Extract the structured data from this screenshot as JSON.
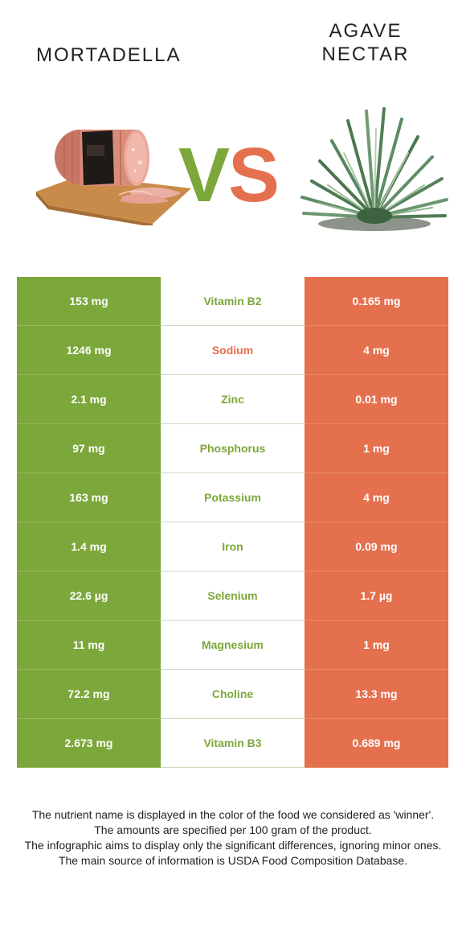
{
  "foods": {
    "left": {
      "name": "MORTADELLA",
      "color": "#7ca73a"
    },
    "right": {
      "name_line1": "AGAVE",
      "name_line2": "NECTAR",
      "color": "#e5704e"
    }
  },
  "vs": {
    "v": "V",
    "s": "S"
  },
  "rows": [
    {
      "left": "153 mg",
      "nutrient": "Vitamin B2",
      "right": "0.165 mg",
      "winner": "left"
    },
    {
      "left": "1246 mg",
      "nutrient": "Sodium",
      "right": "4 mg",
      "winner": "right"
    },
    {
      "left": "2.1 mg",
      "nutrient": "Zinc",
      "right": "0.01 mg",
      "winner": "left"
    },
    {
      "left": "97 mg",
      "nutrient": "Phosphorus",
      "right": "1 mg",
      "winner": "left"
    },
    {
      "left": "163 mg",
      "nutrient": "Potassium",
      "right": "4 mg",
      "winner": "left"
    },
    {
      "left": "1.4 mg",
      "nutrient": "Iron",
      "right": "0.09 mg",
      "winner": "left"
    },
    {
      "left": "22.6 µg",
      "nutrient": "Selenium",
      "right": "1.7 µg",
      "winner": "left"
    },
    {
      "left": "11 mg",
      "nutrient": "Magnesium",
      "right": "1 mg",
      "winner": "left"
    },
    {
      "left": "72.2 mg",
      "nutrient": "Choline",
      "right": "13.3 mg",
      "winner": "left"
    },
    {
      "left": "2.673 mg",
      "nutrient": "Vitamin B3",
      "right": "0.689 mg",
      "winner": "left"
    }
  ],
  "footer": {
    "line1": "The nutrient name is displayed in the color of the food we considered as 'winner'.",
    "line2": "The amounts are specified per 100 gram of the product.",
    "line3": "The infographic aims to display only the significant differences, ignoring minor ones.",
    "line4": "The main source of information is USDA Food Composition Database."
  }
}
